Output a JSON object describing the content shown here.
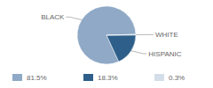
{
  "chart_data": {
    "type": "pie",
    "categories": [
      "BLACK",
      "HISPANIC",
      "WHITE"
    ],
    "values": [
      81.5,
      18.3,
      0.3
    ],
    "value_labels": [
      "81.5%",
      "18.3%",
      "0.3%"
    ],
    "colors": [
      "#8fa9c6",
      "#2e5f8a",
      "#d3dee9"
    ],
    "legend": "bottom"
  }
}
